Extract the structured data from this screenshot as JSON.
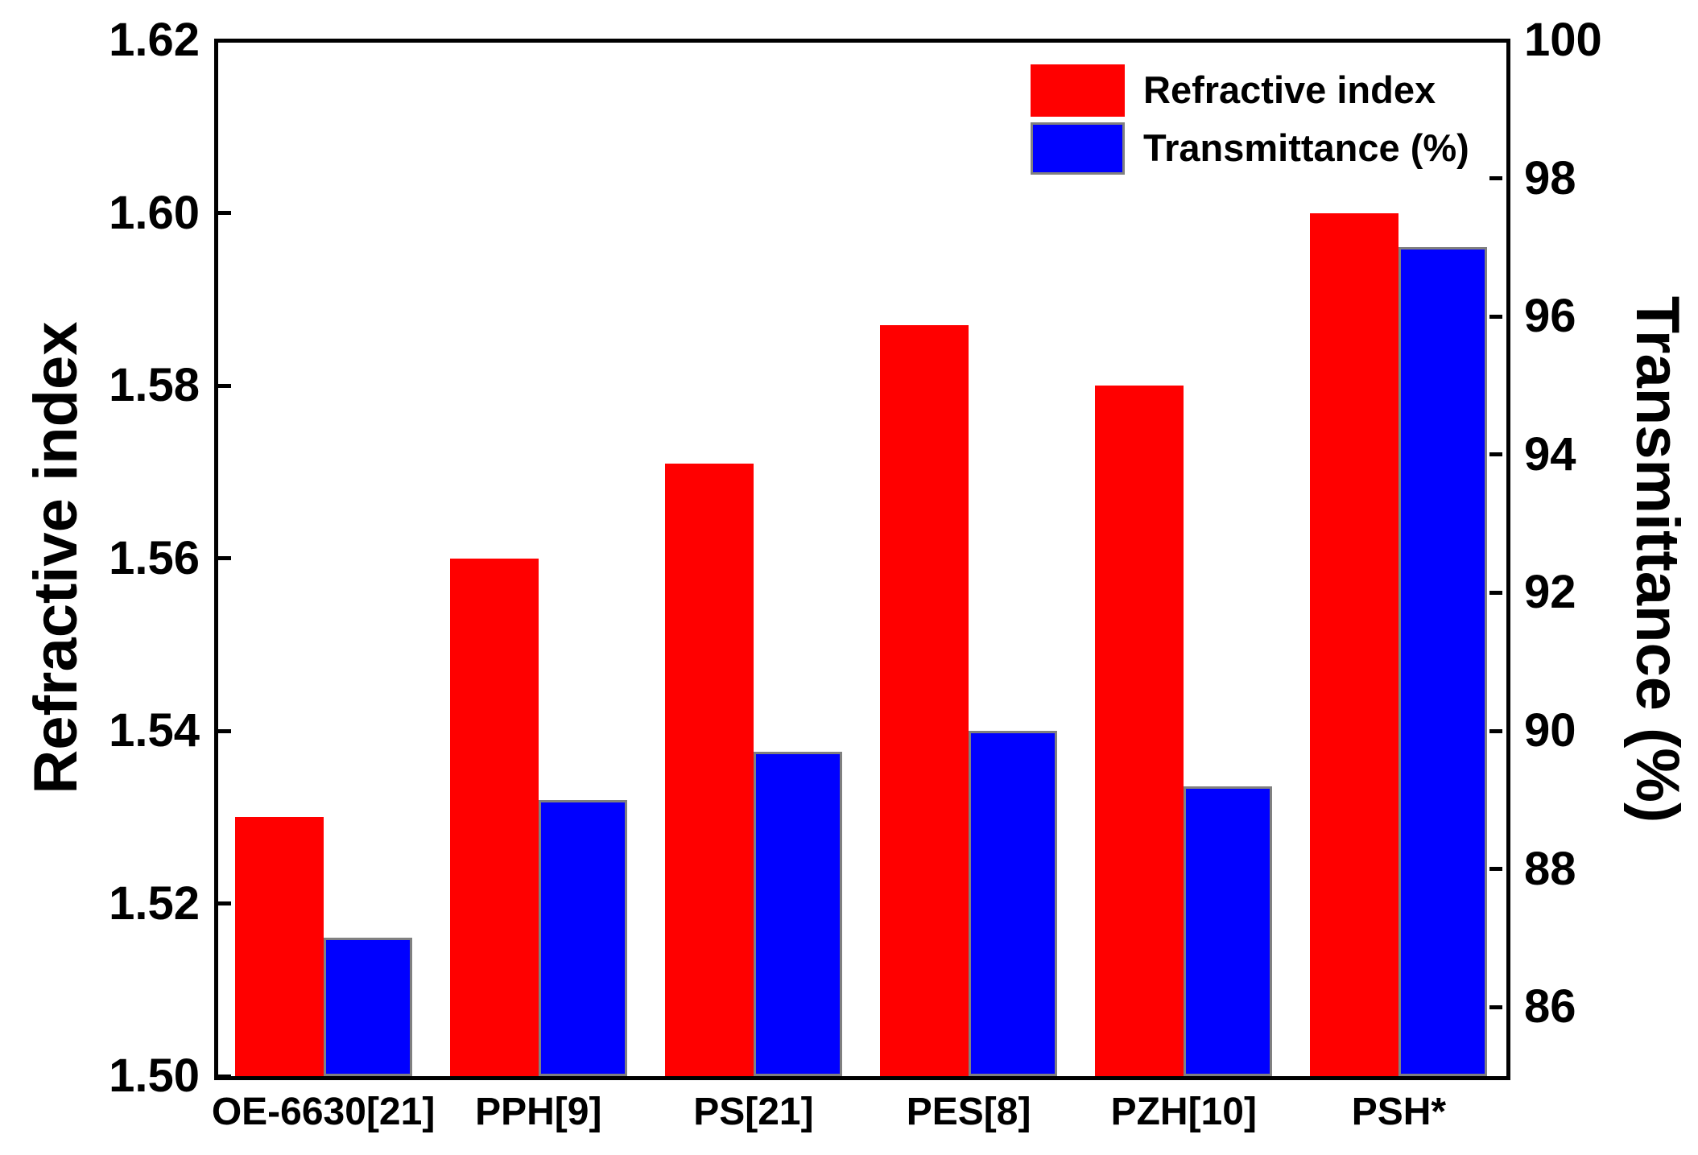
{
  "chart_data": {
    "type": "bar",
    "categories": [
      "OE-6630[21]",
      "PPH[9]",
      "PS[21]",
      "PES[8]",
      "PZH[10]",
      "PSH*"
    ],
    "series": [
      {
        "name": "Refractive index",
        "axis": "left",
        "color": "#ff0000",
        "border_color": null,
        "values": [
          1.53,
          1.56,
          1.571,
          1.587,
          1.58,
          1.6
        ]
      },
      {
        "name": "Transmittance (%)",
        "axis": "right",
        "color": "#0000ff",
        "border_color": "#808080",
        "values": [
          87.0,
          89.0,
          89.7,
          90.0,
          89.2,
          97.0
        ]
      }
    ],
    "left_axis": {
      "label": "Refractive index",
      "min": 1.5,
      "max": 1.62,
      "tick_labels": [
        "1.50",
        "1.52",
        "1.54",
        "1.56",
        "1.58",
        "1.60",
        "1.62"
      ]
    },
    "right_axis": {
      "label": "Transmittance (%)",
      "min": 85,
      "max": 100,
      "tick_labels": [
        "86",
        "88",
        "90",
        "92",
        "94",
        "96",
        "98",
        "100"
      ]
    },
    "legend": [
      {
        "label": "Refractive index",
        "color": "#ff0000",
        "border_color": null
      },
      {
        "label": "Transmittance (%)",
        "color": "#0000ff",
        "border_color": "#808080"
      }
    ],
    "legend_position": "top-right-inside",
    "grid": false,
    "frame_color": "#000000",
    "background_color": "#ffffff"
  }
}
